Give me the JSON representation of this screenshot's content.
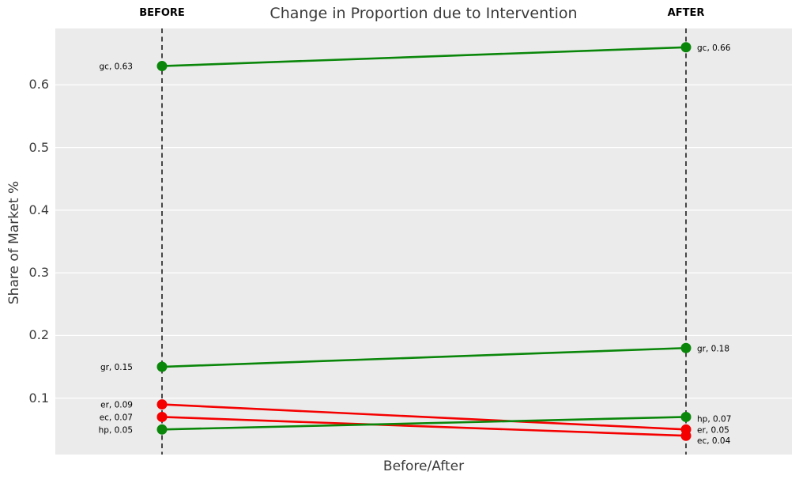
{
  "chart_data": {
    "type": "line",
    "subtype": "slope-chart",
    "title": "Change in Proportion due to Intervention",
    "xlabel": "Before/After",
    "ylabel": "Share of Market %",
    "categories": [
      "BEFORE",
      "AFTER"
    ],
    "yticks": [
      0.1,
      0.2,
      0.3,
      0.4,
      0.5,
      0.6
    ],
    "ylim": [
      0.01,
      0.69
    ],
    "grid": "horizontal-white-on-gray",
    "legend": "none",
    "colors": {
      "increase": "#0a870a",
      "decrease": "#f50000",
      "plot_background": "#ebebeb",
      "gridline": "#ffffff",
      "axis_line": "#000000"
    },
    "series": [
      {
        "name": "gc",
        "before": 0.63,
        "after": 0.66,
        "trend": "increase"
      },
      {
        "name": "gr",
        "before": 0.15,
        "after": 0.18,
        "trend": "increase"
      },
      {
        "name": "er",
        "before": 0.09,
        "after": 0.05,
        "trend": "decrease"
      },
      {
        "name": "ec",
        "before": 0.07,
        "after": 0.04,
        "trend": "decrease"
      },
      {
        "name": "hp",
        "before": 0.05,
        "after": 0.07,
        "trend": "increase"
      }
    ],
    "point_labels": {
      "before": [
        "gc, 0.63",
        "gr, 0.15",
        "er, 0.09",
        "ec, 0.07",
        "hp, 0.05"
      ],
      "after": [
        "gc, 0.66",
        "gr, 0.18",
        "er, 0.05",
        "ec, 0.04",
        "hp, 0.07"
      ]
    }
  }
}
